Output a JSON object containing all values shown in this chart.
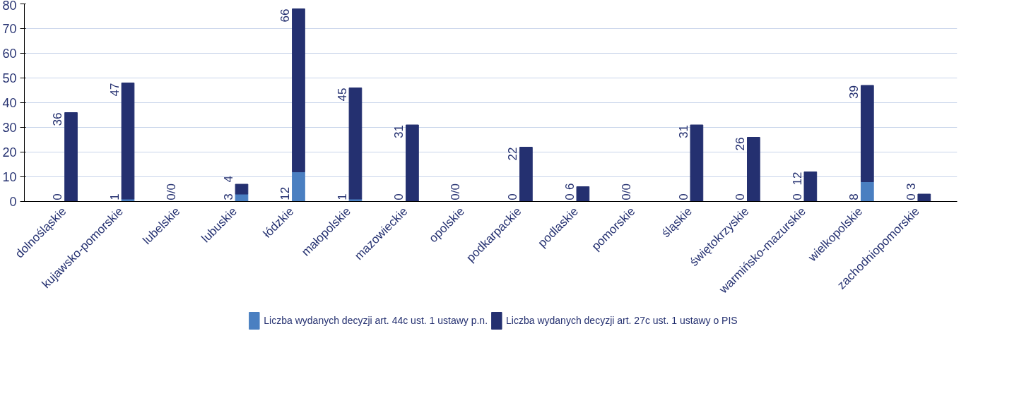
{
  "chart_data": {
    "type": "bar",
    "stacked": true,
    "categories": [
      "dolnośląskie",
      "kujawsko-pomorskie",
      "lubelskie",
      "lubuskie",
      "łódzkie",
      "małopolskie",
      "mazowieckie",
      "opolskie",
      "podkarpackie",
      "podlaskie",
      "pomorskie",
      "śląskie",
      "świętokrzyskie",
      "warmińsko-mazurskie",
      "wielkopolskie",
      "zachodniopomorskie"
    ],
    "series": [
      {
        "name": "Liczba wydanych decyzji art. 44c ust. 1 ustawy p.n.",
        "color": "#4a7fc1",
        "values": [
          0,
          1,
          0,
          3,
          12,
          1,
          0,
          0,
          0,
          0,
          0,
          0,
          0,
          0,
          8,
          0
        ],
        "value_labels": [
          "0",
          "1",
          "0/0",
          "3",
          "12",
          "1",
          "0",
          "0/0",
          "0",
          "0",
          "0/0",
          "0",
          "0",
          "0",
          "8",
          "0"
        ]
      },
      {
        "name": "Liczba wydanych decyzji art. 27c ust. 1 ustawy o PIS",
        "color": "#243070",
        "values": [
          36,
          47,
          0,
          4,
          66,
          45,
          31,
          0,
          22,
          6,
          0,
          31,
          26,
          12,
          39,
          3
        ],
        "value_labels": [
          "36",
          "47",
          null,
          "4",
          "66",
          "45",
          "31",
          null,
          "22",
          "6",
          null,
          "31",
          "26",
          "12",
          "39",
          "3"
        ]
      }
    ],
    "ylim": [
      0,
      80
    ],
    "yticks": [
      0,
      10,
      20,
      30,
      40,
      50,
      60,
      70,
      80
    ],
    "grid": "y",
    "legend": "bottom"
  }
}
